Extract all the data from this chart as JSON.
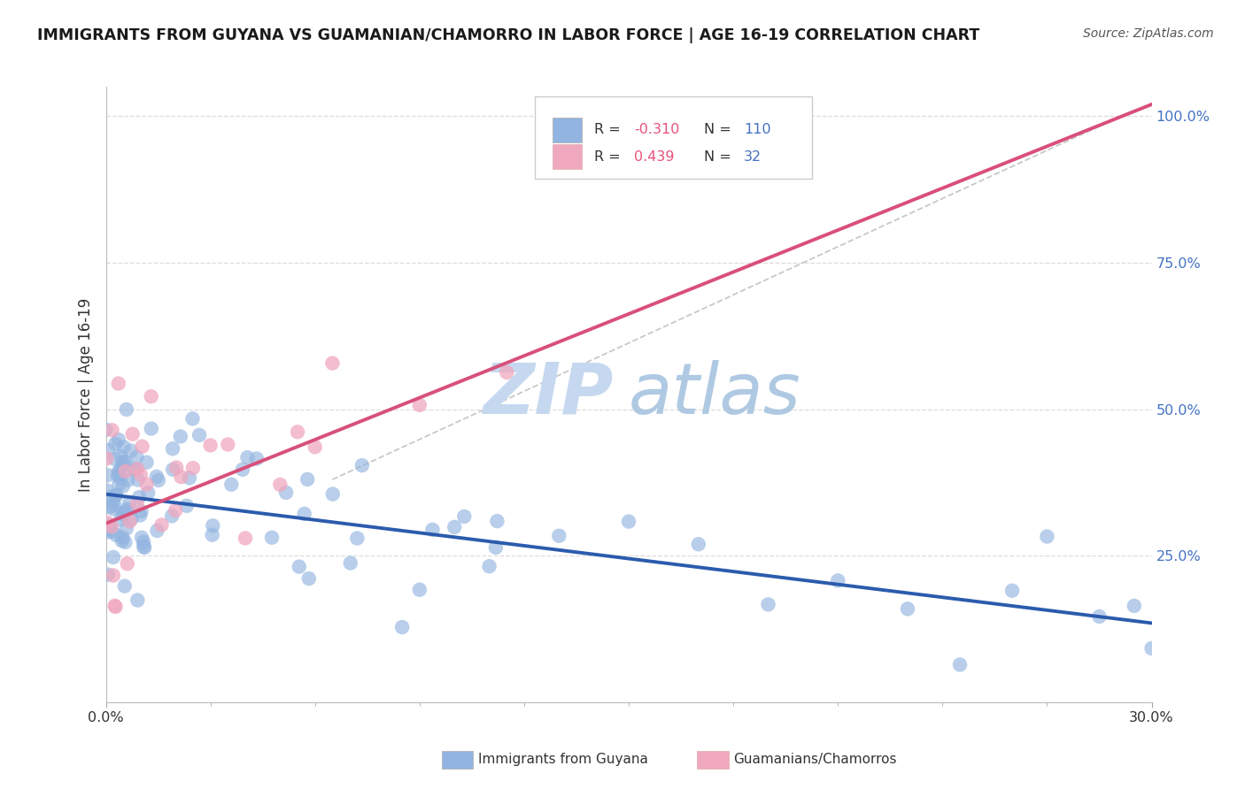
{
  "title": "IMMIGRANTS FROM GUYANA VS GUAMANIAN/CHAMORRO IN LABOR FORCE | AGE 16-19 CORRELATION CHART",
  "source": "Source: ZipAtlas.com",
  "ylabel": "In Labor Force | Age 16-19",
  "xmin": 0.0,
  "xmax": 0.3,
  "ymin": 0.0,
  "ymax": 1.05,
  "legend_r1_text": "-0.310",
  "legend_n1_text": "110",
  "legend_r2_text": "0.439",
  "legend_n2_text": "32",
  "series1_color": "#92B4E0",
  "series2_color": "#F0A8BF",
  "line1_color": "#2B5BAD",
  "line2_color": "#D94F7A",
  "dash_color": "#C8C8C8",
  "background_color": "#FFFFFF",
  "grid_color": "#DCDCDC",
  "title_color": "#1A1A1A",
  "source_color": "#555555",
  "right_tick_color": "#4472C4",
  "label_color": "#333333",
  "blue_line_x0": 0.0,
  "blue_line_x1": 0.3,
  "blue_line_y0": 0.355,
  "blue_line_y1": 0.135,
  "pink_line_x0": 0.0,
  "pink_line_x1": 0.3,
  "pink_line_y0": 0.305,
  "pink_line_y1": 1.02,
  "dash_line_x0": 0.065,
  "dash_line_x1": 0.295,
  "dash_line_y0": 0.38,
  "dash_line_y1": 1.01,
  "watermark_zip_color": "#C5D8EF",
  "watermark_atlas_color": "#A8C4E0"
}
